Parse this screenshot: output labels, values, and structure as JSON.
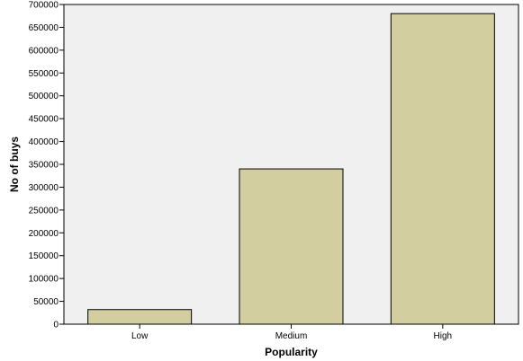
{
  "chart_data": {
    "type": "bar",
    "title": "",
    "xlabel": "Popularity",
    "ylabel": "No of buys",
    "categories": [
      "Low",
      "Medium",
      "High"
    ],
    "values": [
      32000,
      340000,
      680000
    ],
    "ylim": [
      0,
      700000
    ],
    "yticks": [
      "0",
      "50000",
      "100000",
      "150000",
      "200000",
      "250000",
      "300000",
      "350000",
      "400000",
      "450000",
      "500000",
      "550000",
      "600000",
      "650000",
      "700000"
    ],
    "grid": false,
    "legend": "none",
    "colors": {
      "plot_background": "#f0f0f0",
      "bar_fill": "#d3cea0",
      "bar_stroke": "#000000",
      "axis": "#000000"
    }
  }
}
